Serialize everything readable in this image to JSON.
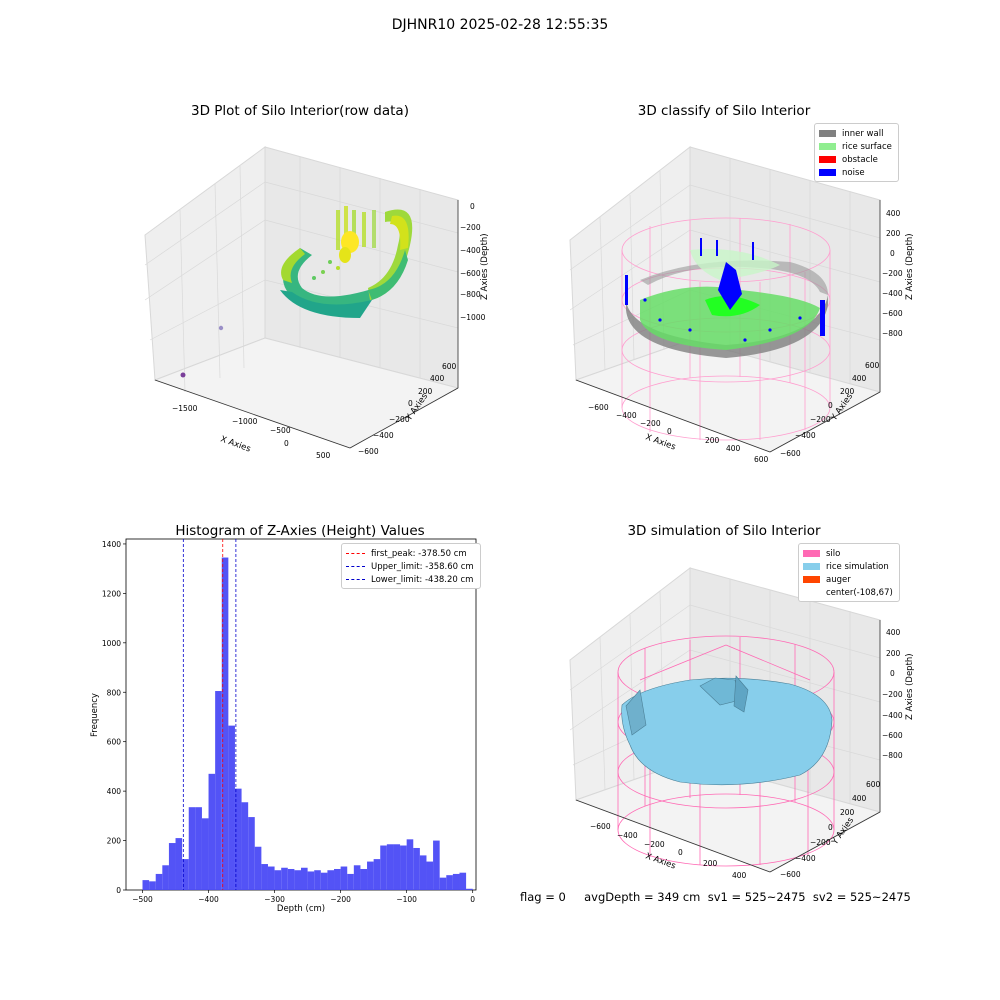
{
  "figure": {
    "suptitle": "DJHNR10 2025-02-28 12:55:35",
    "footer": "flag = 0     avgDepth = 349 cm  sv1 = 525~2475  sv2 = 525~2475"
  },
  "colors": {
    "inner_wall": "#808080",
    "rice_surface": "#90ee90",
    "obstacle": "#ff0000",
    "noise": "#0000ff",
    "silo": "#ff69b4",
    "rice_simulation": "#87ceeb",
    "auger": "#ff4500",
    "hist_bar": "#4a4af5",
    "first_peak": "#ff0000",
    "limits": "#0000cc"
  },
  "panels": {
    "raw": {
      "title": "3D Plot of Silo Interior(row data)",
      "xlabel": "X Axies",
      "ylabel": "Y Axies",
      "zlabel": "Z Axies (Depth)",
      "xticks": [
        "−1500",
        "−1000",
        "−500",
        "0",
        "500"
      ],
      "yticks": [
        "600",
        "400",
        "200",
        "0",
        "−200",
        "−400",
        "−600"
      ],
      "zticks": [
        "0",
        "−200",
        "−400",
        "−600",
        "−800",
        "−1000"
      ]
    },
    "classify": {
      "title": "3D classify of Silo Interior",
      "xlabel": "X Axies",
      "ylabel": "Y Axies",
      "zlabel": "Z Axies (Depth)",
      "xticks": [
        "−600",
        "−400",
        "−200",
        "0",
        "200",
        "400",
        "600"
      ],
      "yticks": [
        "600",
        "400",
        "200",
        "0",
        "−200",
        "−400",
        "−600"
      ],
      "zticks": [
        "400",
        "200",
        "0",
        "−200",
        "−400",
        "−600",
        "−800"
      ],
      "legend": [
        {
          "label": "inner wall",
          "color": "#808080"
        },
        {
          "label": "rice surface",
          "color": "#90ee90"
        },
        {
          "label": "obstacle",
          "color": "#ff0000"
        },
        {
          "label": "noise",
          "color": "#0000ff"
        }
      ]
    },
    "simulation": {
      "title": "3D simulation of Silo Interior",
      "xlabel": "X Axies",
      "ylabel": "Y Axies",
      "zlabel": "Z Axies (Depth)",
      "xticks": [
        "−600",
        "−400",
        "−200",
        "0",
        "200",
        "400"
      ],
      "yticks": [
        "600",
        "400",
        "200",
        "0",
        "−200",
        "−400",
        "−600"
      ],
      "zticks": [
        "400",
        "200",
        "0",
        "−200",
        "−400",
        "−600",
        "−800"
      ],
      "legend": [
        {
          "label": "silo",
          "color": "#ff69b4"
        },
        {
          "label": "rice simulation",
          "color": "#87ceeb"
        },
        {
          "label": "auger",
          "color": "#ff4500"
        },
        {
          "label": "center(-108,67)",
          "color": ""
        }
      ]
    }
  },
  "chart_data": {
    "type": "bar",
    "title": "Histogram of Z-Axies (Height) Values",
    "xlabel": "Depth (cm)",
    "ylabel": "Frequency",
    "xlim": [
      -525,
      5
    ],
    "ylim": [
      0,
      1420
    ],
    "xticks": [
      -500,
      -400,
      -300,
      -200,
      -100,
      0
    ],
    "yticks": [
      0,
      200,
      400,
      600,
      800,
      1000,
      1200,
      1400
    ],
    "bin_start": -500,
    "bin_width": 10,
    "values": [
      40,
      35,
      65,
      100,
      190,
      210,
      125,
      335,
      335,
      290,
      470,
      805,
      1345,
      665,
      410,
      355,
      295,
      175,
      105,
      95,
      80,
      90,
      85,
      80,
      90,
      75,
      80,
      70,
      80,
      85,
      95,
      65,
      100,
      85,
      115,
      125,
      180,
      185,
      185,
      180,
      205,
      170,
      140,
      115,
      200,
      50,
      60,
      65,
      70,
      5
    ],
    "vlines": [
      {
        "label": "first_peak: -378.50 cm",
        "x": -378.5,
        "color": "#ff0000"
      },
      {
        "label": "Upper_limit: -358.60 cm",
        "x": -358.6,
        "color": "#0000cc"
      },
      {
        "label": "Lower_limit: -438.20 cm",
        "x": -438.2,
        "color": "#0000cc"
      }
    ]
  }
}
